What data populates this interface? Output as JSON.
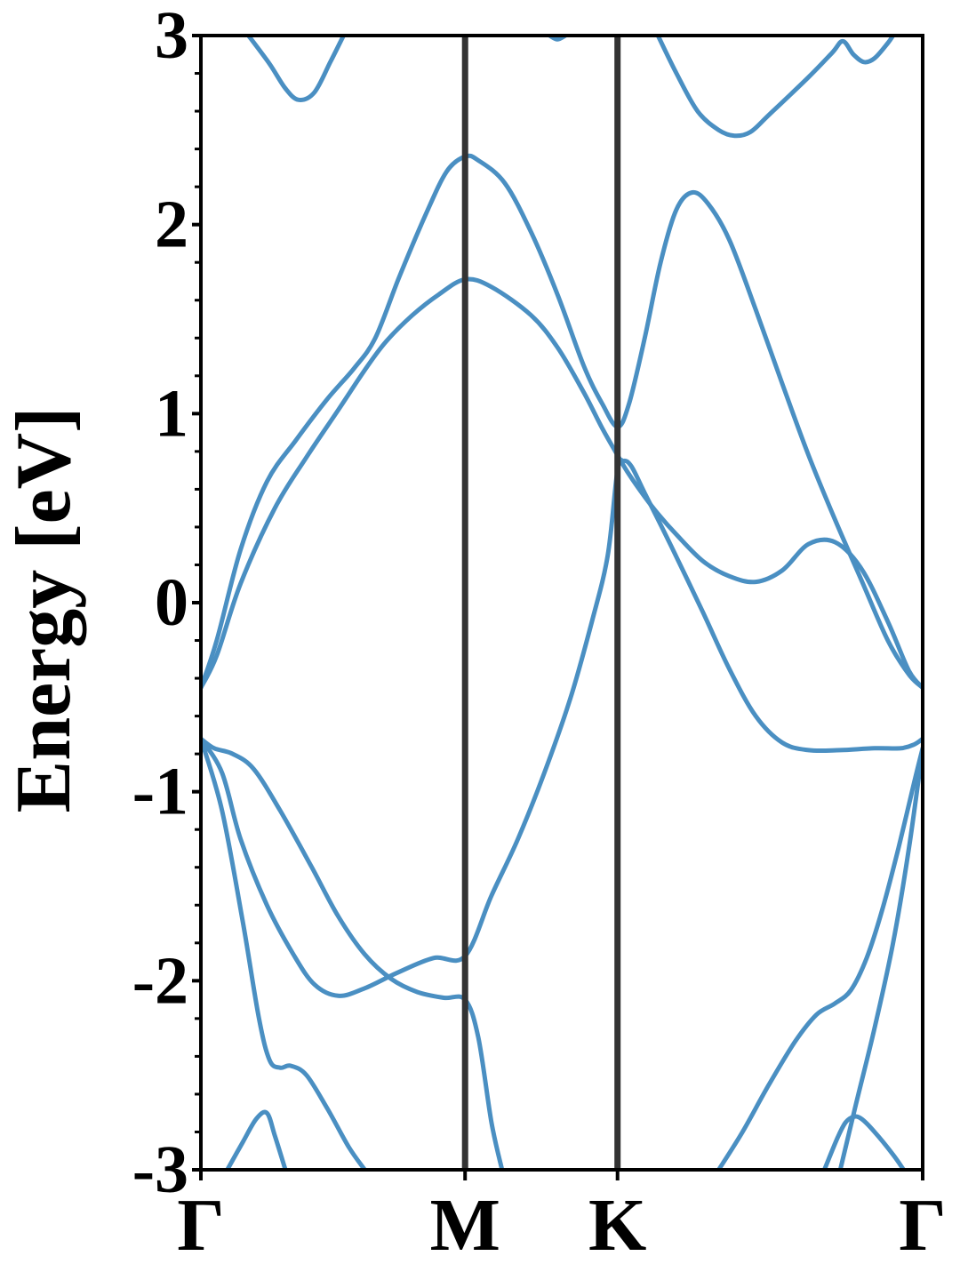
{
  "chart_data": {
    "type": "line",
    "title": "",
    "xlabel": "",
    "ylabel": "Energy [eV]",
    "ylim": [
      -3,
      3
    ],
    "xlim": [
      0,
      2.732
    ],
    "grid": false,
    "legend": "none",
    "colors": {
      "band": "#4a8fc2",
      "kpath_line": "#333333",
      "axes": "#000000"
    },
    "yticks": [
      {
        "value": -3,
        "label": "-3"
      },
      {
        "value": -2,
        "label": "-2"
      },
      {
        "value": -1,
        "label": "-1"
      },
      {
        "value": 0,
        "label": "0"
      },
      {
        "value": 1,
        "label": "1"
      },
      {
        "value": 2,
        "label": "2"
      },
      {
        "value": 3,
        "label": "3"
      }
    ],
    "yminor_step": 0.2,
    "kpoints": [
      {
        "label": "Γ",
        "x": 0.0
      },
      {
        "label": "M",
        "x": 1.0
      },
      {
        "label": "K",
        "x": 1.577
      },
      {
        "label": "Γ",
        "x": 2.732
      }
    ],
    "series": [
      {
        "values": [
          [
            0.18,
            3.0
          ],
          [
            0.26,
            2.85
          ],
          [
            0.32,
            2.72
          ],
          [
            0.37,
            2.66
          ],
          [
            0.43,
            2.7
          ],
          [
            0.49,
            2.86
          ],
          [
            0.54,
            3.0
          ]
        ]
      },
      {
        "values": [
          [
            1.32,
            3.0
          ],
          [
            1.35,
            2.98
          ],
          [
            1.38,
            3.0
          ]
        ]
      },
      {
        "values": [
          [
            1.73,
            3.0
          ],
          [
            1.8,
            2.8
          ],
          [
            1.88,
            2.6
          ],
          [
            1.96,
            2.5
          ],
          [
            2.02,
            2.47
          ],
          [
            2.08,
            2.49
          ],
          [
            2.15,
            2.58
          ],
          [
            2.3,
            2.78
          ],
          [
            2.39,
            2.91
          ],
          [
            2.43,
            2.97
          ],
          [
            2.47,
            2.9
          ],
          [
            2.51,
            2.86
          ],
          [
            2.55,
            2.88
          ],
          [
            2.6,
            2.96
          ],
          [
            2.62,
            3.0
          ]
        ]
      },
      {
        "values": [
          [
            0.0,
            -0.45
          ],
          [
            0.06,
            -0.28
          ],
          [
            0.15,
            0.1
          ],
          [
            0.28,
            0.5
          ],
          [
            0.4,
            0.77
          ],
          [
            0.52,
            1.02
          ],
          [
            0.62,
            1.23
          ],
          [
            0.7,
            1.38
          ],
          [
            0.8,
            1.52
          ],
          [
            0.9,
            1.63
          ],
          [
            1.0,
            1.71
          ],
          [
            1.1,
            1.67
          ],
          [
            1.25,
            1.52
          ],
          [
            1.35,
            1.35
          ],
          [
            1.45,
            1.11
          ],
          [
            1.52,
            0.92
          ],
          [
            1.577,
            0.78
          ],
          [
            1.62,
            0.68
          ],
          [
            1.68,
            0.56
          ],
          [
            1.73,
            0.47
          ],
          [
            1.8,
            0.36
          ],
          [
            1.9,
            0.22
          ],
          [
            2.0,
            0.14
          ],
          [
            2.1,
            0.11
          ],
          [
            2.2,
            0.17
          ],
          [
            2.3,
            0.31
          ],
          [
            2.4,
            0.32
          ],
          [
            2.5,
            0.18
          ],
          [
            2.6,
            -0.1
          ],
          [
            2.68,
            -0.36
          ],
          [
            2.732,
            -0.45
          ]
        ]
      },
      {
        "values": [
          [
            0.0,
            -0.45
          ],
          [
            0.06,
            -0.2
          ],
          [
            0.15,
            0.28
          ],
          [
            0.25,
            0.64
          ],
          [
            0.36,
            0.86
          ],
          [
            0.48,
            1.08
          ],
          [
            0.58,
            1.24
          ],
          [
            0.66,
            1.4
          ],
          [
            0.75,
            1.72
          ],
          [
            0.85,
            2.05
          ],
          [
            0.93,
            2.28
          ],
          [
            1.0,
            2.36
          ],
          [
            1.05,
            2.34
          ],
          [
            1.15,
            2.22
          ],
          [
            1.25,
            1.96
          ],
          [
            1.35,
            1.63
          ],
          [
            1.45,
            1.25
          ],
          [
            1.52,
            1.05
          ],
          [
            1.577,
            0.93
          ],
          [
            1.62,
            1.05
          ],
          [
            1.68,
            1.4
          ],
          [
            1.74,
            1.8
          ],
          [
            1.8,
            2.08
          ],
          [
            1.86,
            2.17
          ],
          [
            1.92,
            2.11
          ],
          [
            2.0,
            1.92
          ],
          [
            2.1,
            1.55
          ],
          [
            2.2,
            1.16
          ],
          [
            2.3,
            0.78
          ],
          [
            2.4,
            0.44
          ],
          [
            2.5,
            0.12
          ],
          [
            2.6,
            -0.2
          ],
          [
            2.68,
            -0.38
          ],
          [
            2.732,
            -0.45
          ]
        ]
      },
      {
        "values": [
          [
            0.0,
            -0.72
          ],
          [
            0.05,
            -0.77
          ],
          [
            0.12,
            -0.8
          ],
          [
            0.2,
            -0.88
          ],
          [
            0.3,
            -1.1
          ],
          [
            0.42,
            -1.4
          ],
          [
            0.52,
            -1.66
          ],
          [
            0.62,
            -1.86
          ],
          [
            0.72,
            -1.99
          ],
          [
            0.82,
            -2.06
          ],
          [
            0.92,
            -2.09
          ],
          [
            1.0,
            -2.1
          ],
          [
            1.05,
            -2.3
          ],
          [
            1.1,
            -2.75
          ],
          [
            1.14,
            -3.0
          ]
        ]
      },
      {
        "values": [
          [
            0.0,
            -0.72
          ],
          [
            0.08,
            -0.9
          ],
          [
            0.15,
            -1.25
          ],
          [
            0.25,
            -1.6
          ],
          [
            0.35,
            -1.86
          ],
          [
            0.43,
            -2.02
          ],
          [
            0.52,
            -2.08
          ],
          [
            0.62,
            -2.04
          ],
          [
            0.74,
            -1.96
          ],
          [
            0.88,
            -1.88
          ],
          [
            1.0,
            -1.87
          ],
          [
            1.1,
            -1.55
          ],
          [
            1.2,
            -1.25
          ],
          [
            1.3,
            -0.9
          ],
          [
            1.4,
            -0.5
          ],
          [
            1.48,
            -0.1
          ],
          [
            1.54,
            0.25
          ],
          [
            1.577,
            0.7
          ],
          [
            1.6,
            0.75
          ],
          [
            1.63,
            0.72
          ],
          [
            1.68,
            0.58
          ],
          [
            1.78,
            0.3
          ],
          [
            1.9,
            -0.05
          ],
          [
            2.0,
            -0.35
          ],
          [
            2.1,
            -0.6
          ],
          [
            2.2,
            -0.74
          ],
          [
            2.3,
            -0.78
          ],
          [
            2.42,
            -0.78
          ],
          [
            2.55,
            -0.77
          ],
          [
            2.65,
            -0.77
          ],
          [
            2.7,
            -0.75
          ],
          [
            2.732,
            -0.72
          ]
        ]
      },
      {
        "values": [
          [
            0.0,
            -0.72
          ],
          [
            0.08,
            -1.1
          ],
          [
            0.16,
            -1.7
          ],
          [
            0.22,
            -2.2
          ],
          [
            0.26,
            -2.42
          ],
          [
            0.3,
            -2.46
          ],
          [
            0.34,
            -2.45
          ],
          [
            0.4,
            -2.5
          ],
          [
            0.48,
            -2.68
          ],
          [
            0.56,
            -2.88
          ],
          [
            0.62,
            -3.0
          ]
        ]
      },
      {
        "values": [
          [
            0.1,
            -3.0
          ],
          [
            0.16,
            -2.85
          ],
          [
            0.21,
            -2.73
          ],
          [
            0.25,
            -2.7
          ],
          [
            0.28,
            -2.82
          ],
          [
            0.32,
            -3.0
          ]
        ]
      },
      {
        "values": [
          [
            1.96,
            -3.0
          ],
          [
            2.05,
            -2.8
          ],
          [
            2.15,
            -2.55
          ],
          [
            2.25,
            -2.32
          ],
          [
            2.33,
            -2.18
          ],
          [
            2.4,
            -2.12
          ],
          [
            2.46,
            -2.05
          ],
          [
            2.52,
            -1.88
          ],
          [
            2.58,
            -1.62
          ],
          [
            2.64,
            -1.3
          ],
          [
            2.7,
            -0.95
          ],
          [
            2.732,
            -0.77
          ]
        ]
      },
      {
        "values": [
          [
            2.36,
            -3.0
          ],
          [
            2.41,
            -2.83
          ],
          [
            2.44,
            -2.75
          ],
          [
            2.47,
            -2.72
          ],
          [
            2.5,
            -2.73
          ],
          [
            2.55,
            -2.8
          ],
          [
            2.62,
            -2.92
          ],
          [
            2.66,
            -3.0
          ]
        ]
      },
      {
        "values": [
          [
            2.42,
            -3.0
          ],
          [
            2.48,
            -2.65
          ],
          [
            2.55,
            -2.25
          ],
          [
            2.62,
            -1.8
          ],
          [
            2.68,
            -1.3
          ],
          [
            2.732,
            -0.77
          ]
        ]
      }
    ]
  }
}
